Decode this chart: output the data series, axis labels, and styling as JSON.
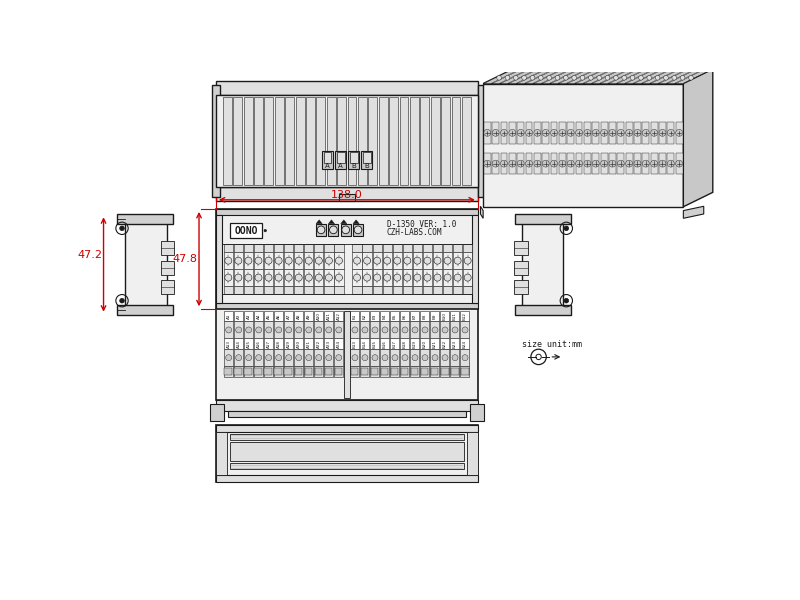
{
  "bg_color": "#ffffff",
  "line_color": "#1a1a1a",
  "dim_color": "#cc0000",
  "light_gray": "#d0d0d0",
  "mid_gray": "#b0b0b0",
  "dark_gray": "#808080",
  "fill_light": "#f0f0f0",
  "fill_mid": "#e0e0e0",
  "fill_dark": "#c8c8c8",
  "dim_138": "138.0",
  "dim_47_2": "47.2",
  "dim_47_8": "47.8",
  "text_model": "D-1350 VER: 1.0",
  "text_web": "CZH-LABS.COM",
  "text_brand": "OONO",
  "text_size": "size unit:mm",
  "figsize": [
    8.0,
    6.0
  ],
  "dpi": 100
}
